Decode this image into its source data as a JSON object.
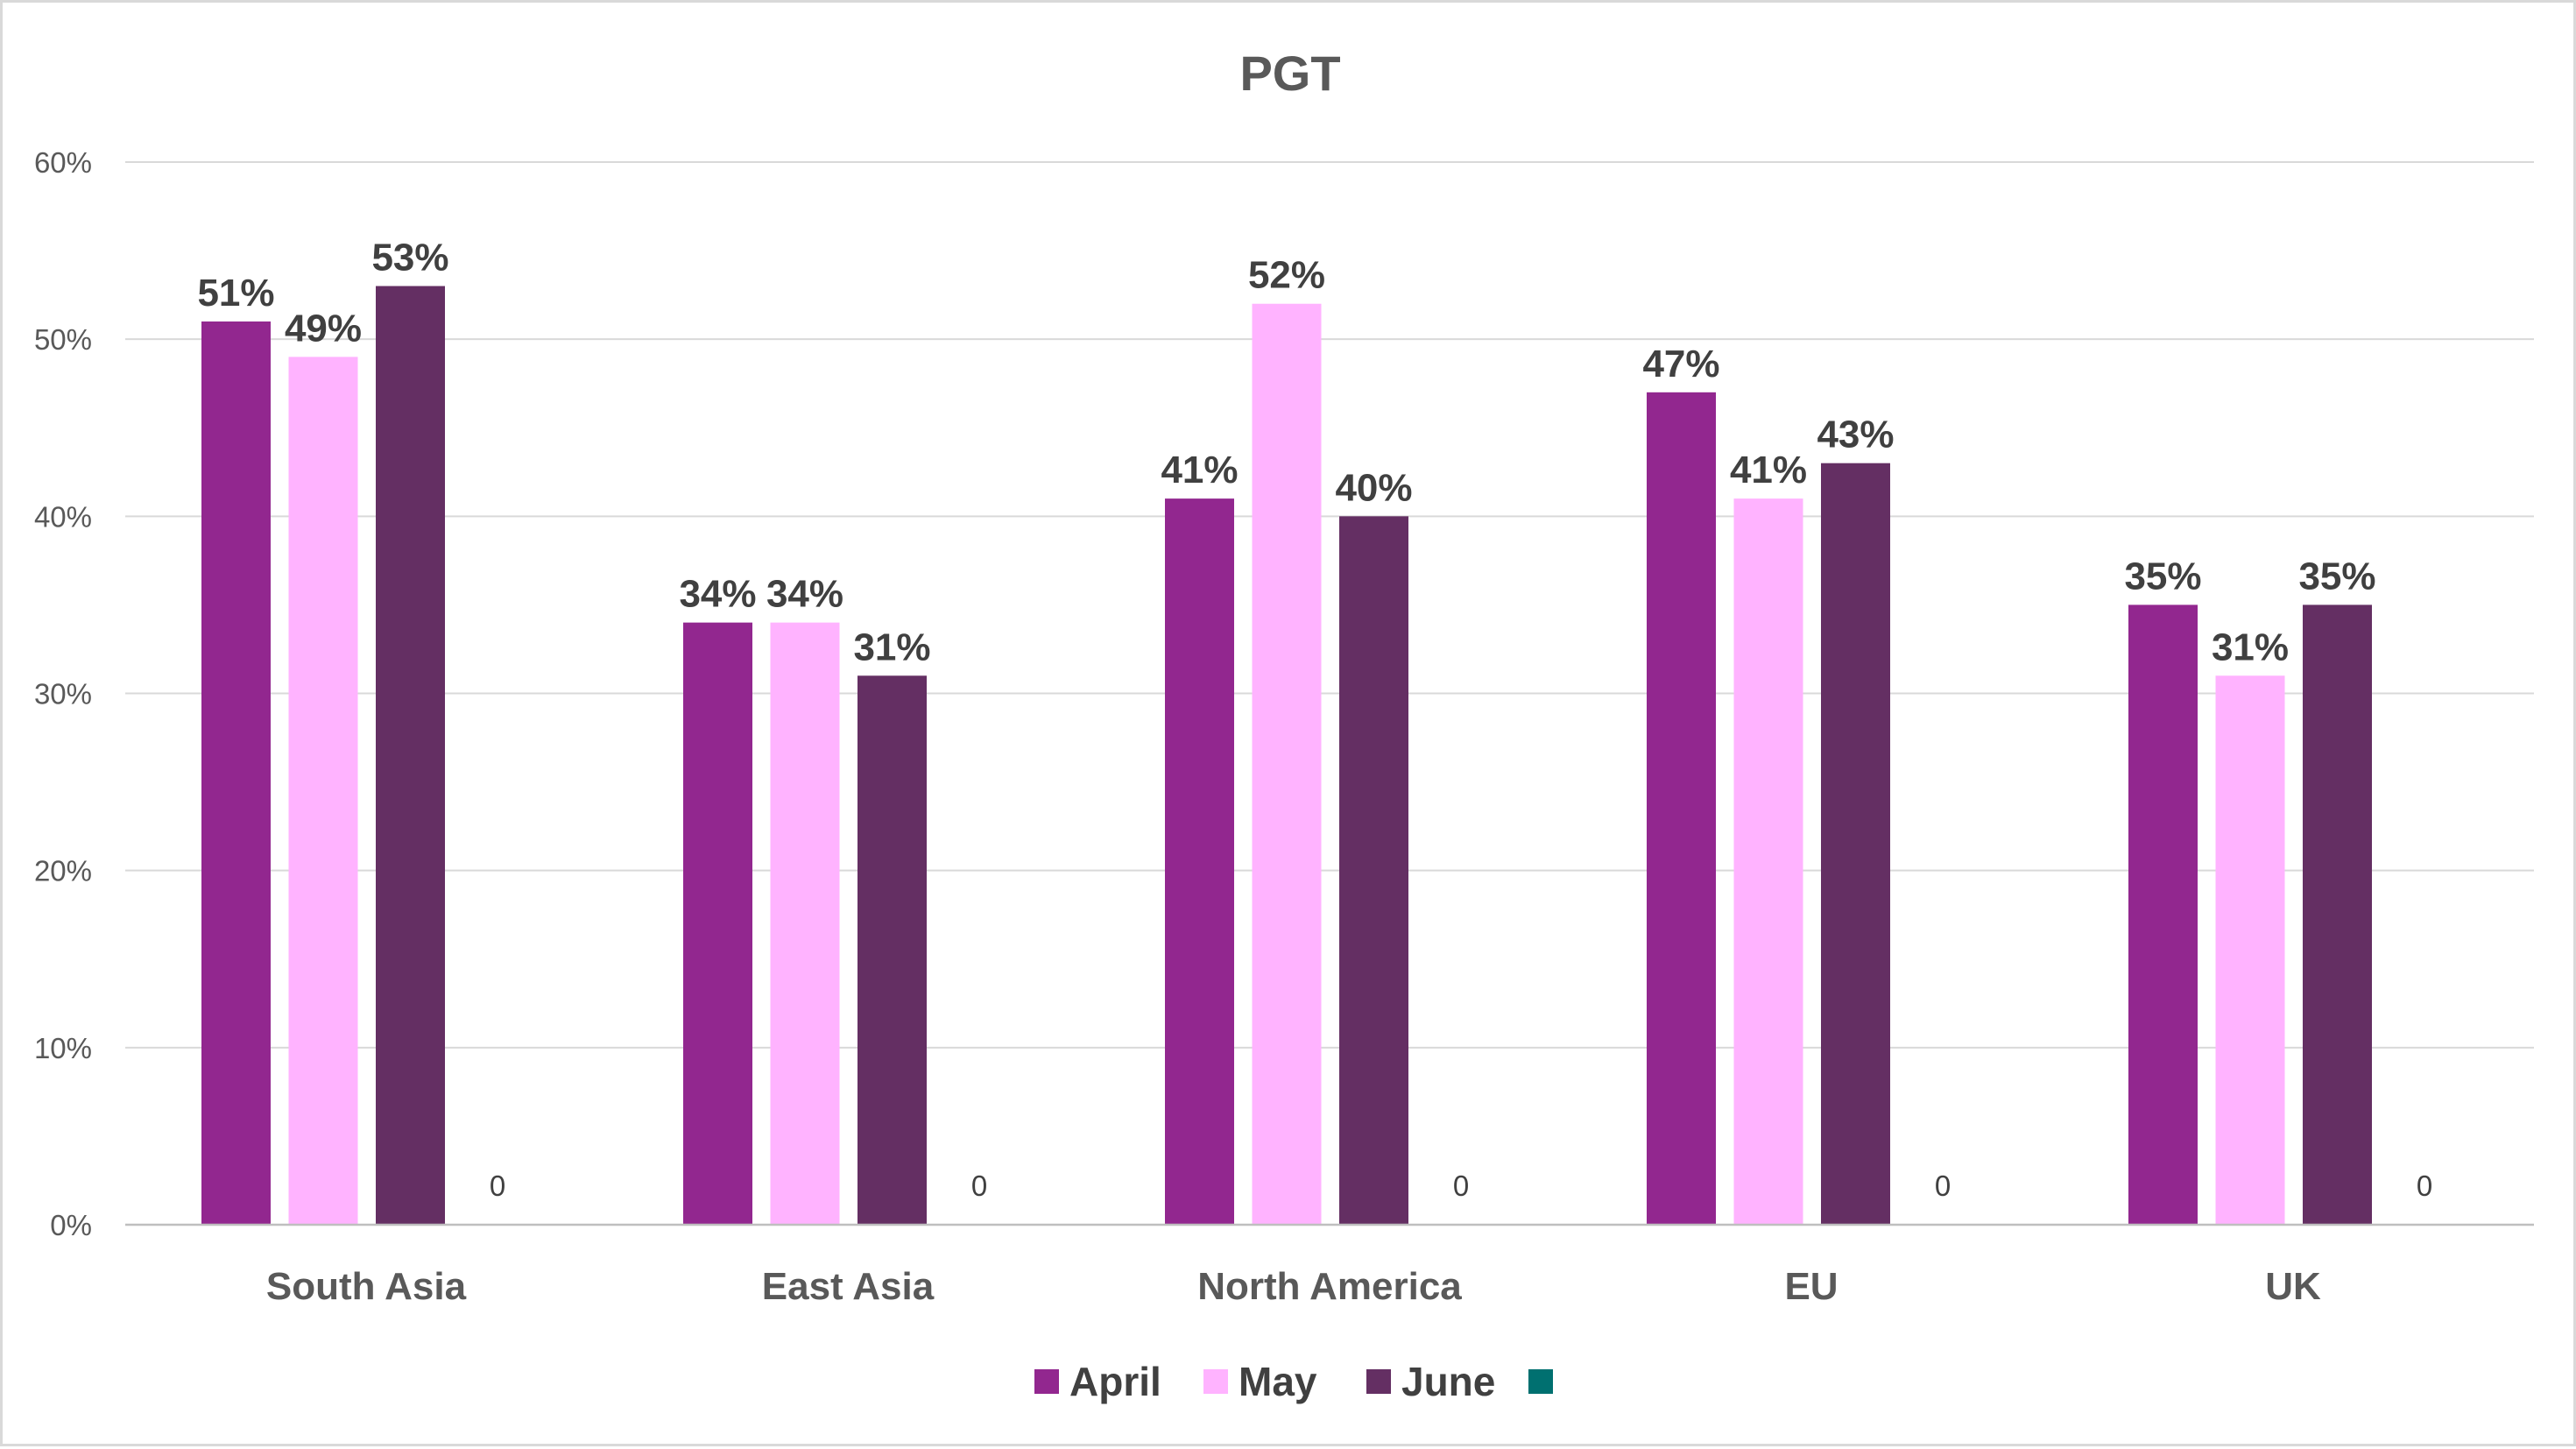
{
  "chart_data": {
    "type": "bar",
    "title": "PGT",
    "categories": [
      "South Asia",
      "East Asia",
      "North America",
      "EU",
      "UK"
    ],
    "series": [
      {
        "name": "April",
        "color": "#92278f",
        "values": [
          51,
          34,
          41,
          47,
          35
        ],
        "labels": [
          "51%",
          "34%",
          "41%",
          "47%",
          "35%"
        ]
      },
      {
        "name": "May",
        "color": "#ffb3ff",
        "values": [
          49,
          34,
          52,
          41,
          31
        ],
        "labels": [
          "49%",
          "34%",
          "52%",
          "41%",
          "31%"
        ]
      },
      {
        "name": "June",
        "color": "#642f63",
        "values": [
          53,
          31,
          40,
          43,
          35
        ],
        "labels": [
          "53%",
          "31%",
          "40%",
          "43%",
          "35%"
        ]
      },
      {
        "name": "",
        "color": "#007070",
        "values": [
          0,
          0,
          0,
          0,
          0
        ],
        "labels": [
          "0",
          "0",
          "0",
          "0",
          "0"
        ]
      }
    ],
    "ylim": [
      0,
      60
    ],
    "yticks": [
      0,
      10,
      20,
      30,
      40,
      50,
      60
    ],
    "ytick_labels": [
      "0%",
      "10%",
      "20%",
      "30%",
      "40%",
      "50%",
      "60%"
    ],
    "xlabel": "",
    "ylabel": "",
    "grid": true,
    "legend_position": "bottom"
  }
}
